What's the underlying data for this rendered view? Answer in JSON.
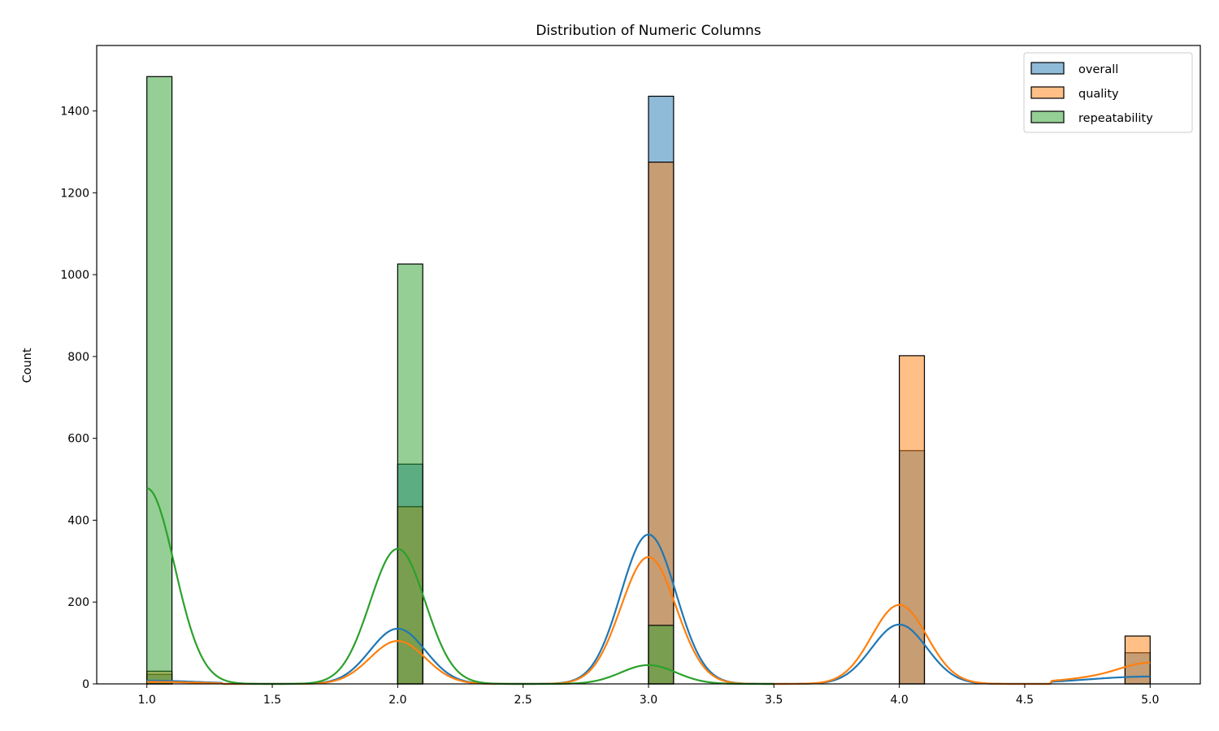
{
  "chart_data": {
    "type": "bar",
    "title": "Distribution of Numeric Columns",
    "xlabel": "",
    "ylabel": "Count",
    "xlim": [
      0.8,
      5.2
    ],
    "ylim": [
      0,
      1560
    ],
    "xticks": [
      1.0,
      1.5,
      2.0,
      2.5,
      3.0,
      3.5,
      4.0,
      4.5,
      5.0
    ],
    "xtick_labels": [
      "1.0",
      "1.5",
      "2.0",
      "2.5",
      "3.0",
      "3.5",
      "4.0",
      "4.5",
      "5.0"
    ],
    "yticks": [
      0,
      200,
      400,
      600,
      800,
      1000,
      1200,
      1400
    ],
    "ytick_labels": [
      "0",
      "200",
      "400",
      "600",
      "800",
      "1000",
      "1200",
      "1400"
    ],
    "bin_width": 0.1,
    "grid": false,
    "legend_position": "top-right",
    "series": [
      {
        "name": "overall",
        "color": "#1f77b4",
        "bins": [
          {
            "x": 1.0,
            "count": 23
          },
          {
            "x": 2.0,
            "count": 537
          },
          {
            "x": 3.0,
            "count": 1436
          },
          {
            "x": 4.0,
            "count": 570
          },
          {
            "x": 4.9,
            "count": 76
          }
        ],
        "kde": [
          [
            1.0,
            8
          ],
          [
            1.5,
            2
          ],
          [
            2.0,
            135
          ],
          [
            2.5,
            3
          ],
          [
            3.0,
            365
          ],
          [
            3.5,
            5
          ],
          [
            4.0,
            145
          ],
          [
            4.5,
            3
          ],
          [
            5.0,
            18
          ]
        ]
      },
      {
        "name": "quality",
        "color": "#ff7f0e",
        "bins": [
          {
            "x": 1.0,
            "count": 31
          },
          {
            "x": 2.0,
            "count": 433
          },
          {
            "x": 3.0,
            "count": 1275
          },
          {
            "x": 4.0,
            "count": 802
          },
          {
            "x": 4.9,
            "count": 117
          }
        ],
        "kde": [
          [
            1.0,
            5
          ],
          [
            1.5,
            2
          ],
          [
            2.0,
            105
          ],
          [
            2.5,
            3
          ],
          [
            3.0,
            310
          ],
          [
            3.5,
            6
          ],
          [
            4.0,
            193
          ],
          [
            4.5,
            3
          ],
          [
            5.0,
            26
          ]
        ]
      },
      {
        "name": "repeatability",
        "color": "#2ca02c",
        "bins": [
          {
            "x": 1.0,
            "count": 1484
          },
          {
            "x": 2.0,
            "count": 1026
          },
          {
            "x": 3.0,
            "count": 143
          }
        ],
        "kde": [
          [
            1.0,
            478
          ],
          [
            1.5,
            0
          ],
          [
            2.0,
            330
          ],
          [
            2.5,
            0
          ],
          [
            3.0,
            46
          ],
          [
            3.5,
            0
          ]
        ]
      }
    ]
  }
}
